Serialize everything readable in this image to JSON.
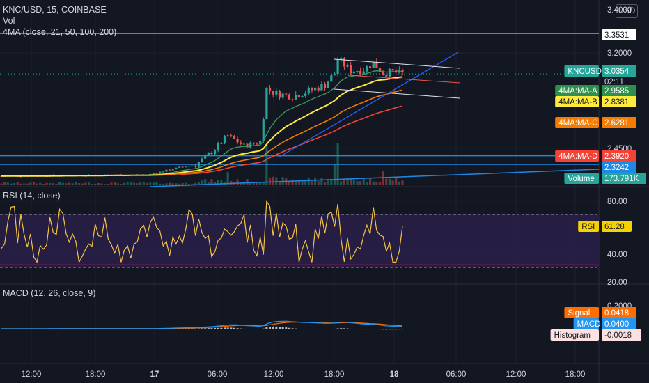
{
  "header": {
    "symbol_line": "KNC/USD, 15, COINBASE",
    "volume_label": "Vol",
    "ma_label": "4MA (close, 21, 50, 100, 200)",
    "currency_button": "USD"
  },
  "rsi_pane": {
    "label": "RSI (14, close)"
  },
  "macd_pane": {
    "label": "MACD (12, 26, close, 9)"
  },
  "colors": {
    "background": "#131722",
    "up": "#26a69a",
    "down": "#ef5350",
    "ma_a": "#3a9a5a",
    "ma_b": "#ffeb3b",
    "ma_c": "#f57c00",
    "ma_d": "#f44336",
    "trend_blue": "#2962ff",
    "rsi_line": "#f5c542",
    "rsi_band": "#2a1f48",
    "macd_line": "#2196f3",
    "signal_line": "#ff6d00"
  },
  "chart_data": [
    {
      "type": "candlestick",
      "pane": "price",
      "title": "KNC/USD, 15, COINBASE",
      "x_ticks": [
        "12:00",
        "18:00",
        "17",
        "06:00",
        "12:00",
        "18:00",
        "18",
        "06:00",
        "12:00",
        "18:00"
      ],
      "y_ticks": [
        "3.4000",
        "3.2000",
        "2.4500"
      ],
      "ylim": [
        2.22,
        3.45
      ],
      "current_price": 3.0354,
      "price_labels": [
        {
          "name": "",
          "value": "3.3531"
        },
        {
          "name": "KNCUSD",
          "value": "3.0354",
          "countdown": "02:11"
        },
        {
          "name": "4MA:MA-A",
          "value": "2.9585"
        },
        {
          "name": "4MA:MA-B",
          "value": "2.8381"
        },
        {
          "name": "4MA:MA-C",
          "value": "2.6281"
        },
        {
          "name": "4MA:MA-D",
          "value": "2.3920"
        },
        {
          "name": "",
          "value": "2.3242"
        },
        {
          "name": "Volume",
          "value": "173.791K"
        }
      ],
      "horizontal_lines": [
        3.3531,
        2.392,
        2.3242
      ],
      "series": [
        {
          "name": "4MA:MA-A",
          "last": 2.9585
        },
        {
          "name": "4MA:MA-B",
          "last": 2.8381
        },
        {
          "name": "4MA:MA-C",
          "last": 2.6281
        },
        {
          "name": "4MA:MA-D",
          "last": 2.392
        }
      ]
    },
    {
      "type": "line",
      "pane": "rsi",
      "title": "RSI (14, close)",
      "y_ticks": [
        "80.00",
        "40.00",
        "20.00"
      ],
      "ylim": [
        20,
        90
      ],
      "bands": [
        70,
        30
      ],
      "series": [
        {
          "name": "RSI",
          "last": "61.28"
        }
      ]
    },
    {
      "type": "line",
      "pane": "macd",
      "title": "MACD (12, 26, close, 9)",
      "y_ticks": [
        "0.2000"
      ],
      "series": [
        {
          "name": "Signal",
          "last": "0.0418"
        },
        {
          "name": "MACD",
          "last": "0.0400"
        },
        {
          "name": "Histogram",
          "last": "-0.0018"
        }
      ]
    }
  ]
}
